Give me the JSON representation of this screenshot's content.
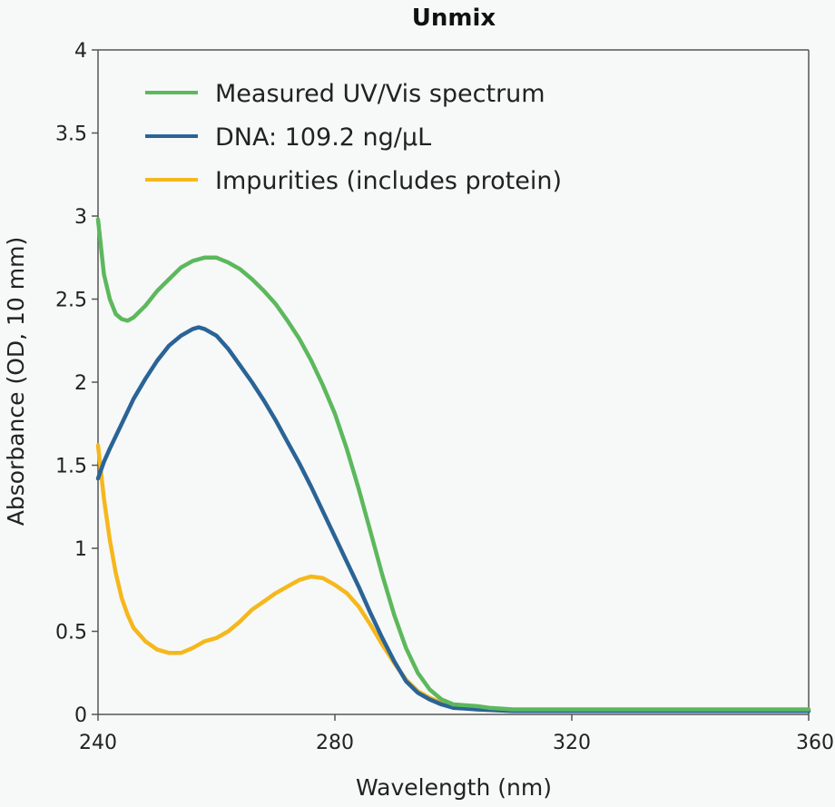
{
  "chart_data": {
    "type": "line",
    "title": "Unmix",
    "xlabel": "Wavelength (nm)",
    "ylabel": "Absorbance (OD, 10 mm)",
    "xlim": [
      240,
      360
    ],
    "ylim": [
      0,
      4
    ],
    "x_ticks": [
      240,
      280,
      320,
      360
    ],
    "y_ticks": [
      0,
      0.5,
      1,
      1.5,
      2,
      2.5,
      3,
      3.5,
      4
    ],
    "y_tick_labels": [
      "0",
      "0.5",
      "1",
      "1.5",
      "2",
      "2.5",
      "3",
      "3.5",
      "4"
    ],
    "grid": false,
    "legend_position": "top-left",
    "series": [
      {
        "name": "Measured UV/Vis spectrum",
        "color": "#5cb85c",
        "points": [
          [
            240,
            2.98
          ],
          [
            241,
            2.65
          ],
          [
            242,
            2.5
          ],
          [
            243,
            2.41
          ],
          [
            244,
            2.38
          ],
          [
            245,
            2.37
          ],
          [
            246,
            2.39
          ],
          [
            248,
            2.46
          ],
          [
            250,
            2.55
          ],
          [
            252,
            2.62
          ],
          [
            254,
            2.69
          ],
          [
            256,
            2.73
          ],
          [
            258,
            2.75
          ],
          [
            260,
            2.75
          ],
          [
            262,
            2.72
          ],
          [
            264,
            2.68
          ],
          [
            266,
            2.62
          ],
          [
            268,
            2.55
          ],
          [
            270,
            2.47
          ],
          [
            272,
            2.37
          ],
          [
            274,
            2.26
          ],
          [
            276,
            2.13
          ],
          [
            278,
            1.98
          ],
          [
            280,
            1.81
          ],
          [
            282,
            1.6
          ],
          [
            284,
            1.36
          ],
          [
            286,
            1.1
          ],
          [
            288,
            0.84
          ],
          [
            290,
            0.6
          ],
          [
            292,
            0.4
          ],
          [
            294,
            0.25
          ],
          [
            296,
            0.15
          ],
          [
            298,
            0.09
          ],
          [
            300,
            0.06
          ],
          [
            304,
            0.05
          ],
          [
            306,
            0.04
          ],
          [
            310,
            0.03
          ],
          [
            320,
            0.03
          ],
          [
            360,
            0.03
          ]
        ]
      },
      {
        "name": "DNA: 109.2 ng/µL",
        "color": "#2a6496",
        "points": [
          [
            240,
            1.42
          ],
          [
            241,
            1.52
          ],
          [
            242,
            1.6
          ],
          [
            244,
            1.75
          ],
          [
            246,
            1.9
          ],
          [
            248,
            2.02
          ],
          [
            250,
            2.13
          ],
          [
            252,
            2.22
          ],
          [
            254,
            2.28
          ],
          [
            256,
            2.32
          ],
          [
            257,
            2.33
          ],
          [
            258,
            2.32
          ],
          [
            260,
            2.28
          ],
          [
            262,
            2.2
          ],
          [
            264,
            2.1
          ],
          [
            266,
            2.0
          ],
          [
            268,
            1.89
          ],
          [
            270,
            1.77
          ],
          [
            272,
            1.64
          ],
          [
            274,
            1.51
          ],
          [
            276,
            1.37
          ],
          [
            278,
            1.22
          ],
          [
            280,
            1.07
          ],
          [
            282,
            0.92
          ],
          [
            284,
            0.77
          ],
          [
            286,
            0.61
          ],
          [
            288,
            0.46
          ],
          [
            290,
            0.32
          ],
          [
            292,
            0.2
          ],
          [
            294,
            0.13
          ],
          [
            296,
            0.09
          ],
          [
            298,
            0.06
          ],
          [
            300,
            0.04
          ],
          [
            304,
            0.03
          ],
          [
            310,
            0.02
          ],
          [
            360,
            0.02
          ]
        ]
      },
      {
        "name": "Impurities (includes protein)",
        "color": "#f5b81c",
        "points": [
          [
            240,
            1.62
          ],
          [
            241,
            1.3
          ],
          [
            242,
            1.05
          ],
          [
            243,
            0.85
          ],
          [
            244,
            0.7
          ],
          [
            245,
            0.6
          ],
          [
            246,
            0.52
          ],
          [
            248,
            0.44
          ],
          [
            250,
            0.39
          ],
          [
            252,
            0.37
          ],
          [
            254,
            0.37
          ],
          [
            256,
            0.4
          ],
          [
            258,
            0.44
          ],
          [
            260,
            0.46
          ],
          [
            262,
            0.5
          ],
          [
            264,
            0.56
          ],
          [
            266,
            0.63
          ],
          [
            268,
            0.68
          ],
          [
            270,
            0.73
          ],
          [
            272,
            0.77
          ],
          [
            274,
            0.81
          ],
          [
            276,
            0.83
          ],
          [
            278,
            0.82
          ],
          [
            280,
            0.78
          ],
          [
            282,
            0.73
          ],
          [
            284,
            0.65
          ],
          [
            286,
            0.54
          ],
          [
            288,
            0.42
          ],
          [
            290,
            0.31
          ],
          [
            292,
            0.21
          ],
          [
            294,
            0.14
          ],
          [
            296,
            0.1
          ],
          [
            298,
            0.07
          ],
          [
            300,
            0.05
          ],
          [
            304,
            0.03
          ],
          [
            310,
            0.02
          ],
          [
            360,
            0.02
          ]
        ]
      }
    ]
  }
}
